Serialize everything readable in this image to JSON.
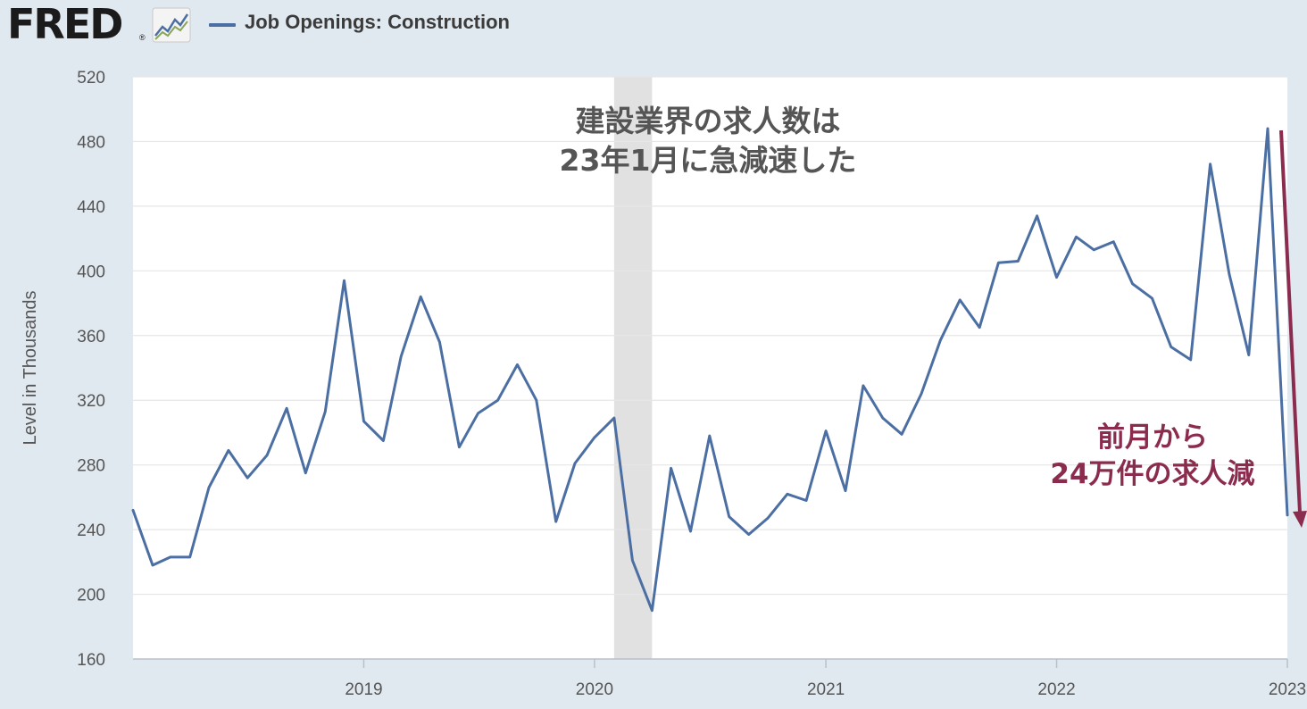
{
  "header": {
    "logo_text": "FRED",
    "logo_mark": "®",
    "logo_icon": "trend-chart-icon",
    "series_title": "Job Openings: Construction"
  },
  "colors": {
    "background": "#e1e9f0",
    "plot_background": "#ffffff",
    "series_line": "#4c6fa3",
    "recession_band": "#e1e1e1",
    "annotation_title": "#555555",
    "annotation_highlight": "#8b2c4f"
  },
  "chart_data": {
    "type": "line",
    "title": "Job Openings: Construction",
    "ylabel": "Level in Thousands",
    "xlabel": "",
    "ylim": [
      160,
      520
    ],
    "yticks": [
      160,
      200,
      240,
      280,
      320,
      360,
      400,
      440,
      480,
      520
    ],
    "xticks": [
      "2019",
      "2020",
      "2021",
      "2022",
      "2023"
    ],
    "grid": true,
    "recession_shading": {
      "start": "2020-02",
      "end": "2020-04"
    },
    "series": [
      {
        "name": "Job Openings: Construction",
        "x": [
          "2018-01",
          "2018-02",
          "2018-03",
          "2018-04",
          "2018-05",
          "2018-06",
          "2018-07",
          "2018-08",
          "2018-09",
          "2018-10",
          "2018-11",
          "2018-12",
          "2019-01",
          "2019-02",
          "2019-03",
          "2019-04",
          "2019-05",
          "2019-06",
          "2019-07",
          "2019-08",
          "2019-09",
          "2019-10",
          "2019-11",
          "2019-12",
          "2020-01",
          "2020-02",
          "2020-03",
          "2020-04",
          "2020-05",
          "2020-06",
          "2020-07",
          "2020-08",
          "2020-09",
          "2020-10",
          "2020-11",
          "2020-12",
          "2021-01",
          "2021-02",
          "2021-03",
          "2021-04",
          "2021-05",
          "2021-06",
          "2021-07",
          "2021-08",
          "2021-09",
          "2021-10",
          "2021-11",
          "2021-12",
          "2022-01",
          "2022-02",
          "2022-03",
          "2022-04",
          "2022-05",
          "2022-06",
          "2022-07",
          "2022-08",
          "2022-09",
          "2022-10",
          "2022-11",
          "2022-12",
          "2023-01"
        ],
        "values": [
          252,
          218,
          223,
          223,
          266,
          289,
          272,
          286,
          315,
          275,
          313,
          394,
          307,
          295,
          347,
          384,
          356,
          291,
          312,
          320,
          342,
          320,
          245,
          281,
          297,
          309,
          221,
          190,
          278,
          239,
          298,
          248,
          237,
          247,
          262,
          258,
          301,
          264,
          329,
          309,
          299,
          324,
          357,
          382,
          365,
          405,
          406,
          434,
          396,
          421,
          413,
          418,
          392,
          383,
          353,
          345,
          466,
          398,
          348,
          488,
          249
        ]
      }
    ],
    "annotations": [
      {
        "lines": [
          "建設業界の求人数は",
          "23年1月に急減速した"
        ]
      },
      {
        "lines": [
          "前月から",
          "24万件の求人減"
        ]
      }
    ]
  }
}
